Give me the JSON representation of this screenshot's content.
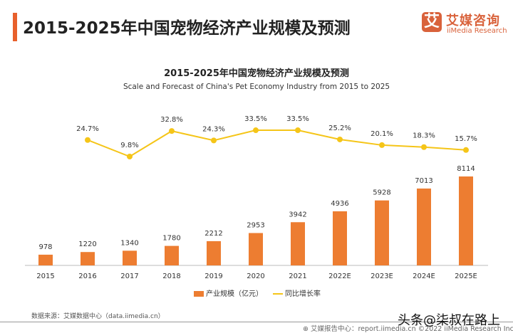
{
  "header": {
    "title": "2015-2025年中国宠物经济产业规模及预测",
    "logo_mark": "艾",
    "logo_cn": "艾媒咨询",
    "logo_en": "iiMedia Research"
  },
  "chart_data": {
    "type": "bar+line",
    "title": "2015-2025年中国宠物经济产业规模及预测",
    "subtitle": "Scale and Forecast of China's Pet Economy Industry from 2015 to 2025",
    "categories": [
      "2015",
      "2016",
      "2017",
      "2018",
      "2019",
      "2020",
      "2021",
      "2022E",
      "2023E",
      "2024E",
      "2025E"
    ],
    "series": [
      {
        "name": "产业规模（亿元）",
        "type": "bar",
        "color": "#ed7d31",
        "values": [
          978,
          1220,
          1340,
          1780,
          2212,
          2953,
          3942,
          4936,
          5928,
          7013,
          8114
        ]
      },
      {
        "name": "同比增长率",
        "type": "line",
        "color": "#f5c518",
        "values": [
          null,
          24.7,
          9.8,
          32.8,
          24.3,
          33.5,
          33.5,
          25.2,
          20.1,
          18.3,
          15.7
        ],
        "labels": [
          "",
          "24.7%",
          "9.8%",
          "32.8%",
          "24.3%",
          "33.5%",
          "33.5%",
          "25.2%",
          "20.1%",
          "18.3%",
          "15.7%"
        ]
      }
    ],
    "legend": "bottom-center",
    "grid": false
  },
  "footer": {
    "source": "数据来源：艾媒数据中心（data.iimedia.cn）",
    "report": "⊕ 艾媒报告中心：report.iimedia.cn  ©2022  iiMedia Research Inc",
    "watermark": "头条@柒叔在路上"
  }
}
